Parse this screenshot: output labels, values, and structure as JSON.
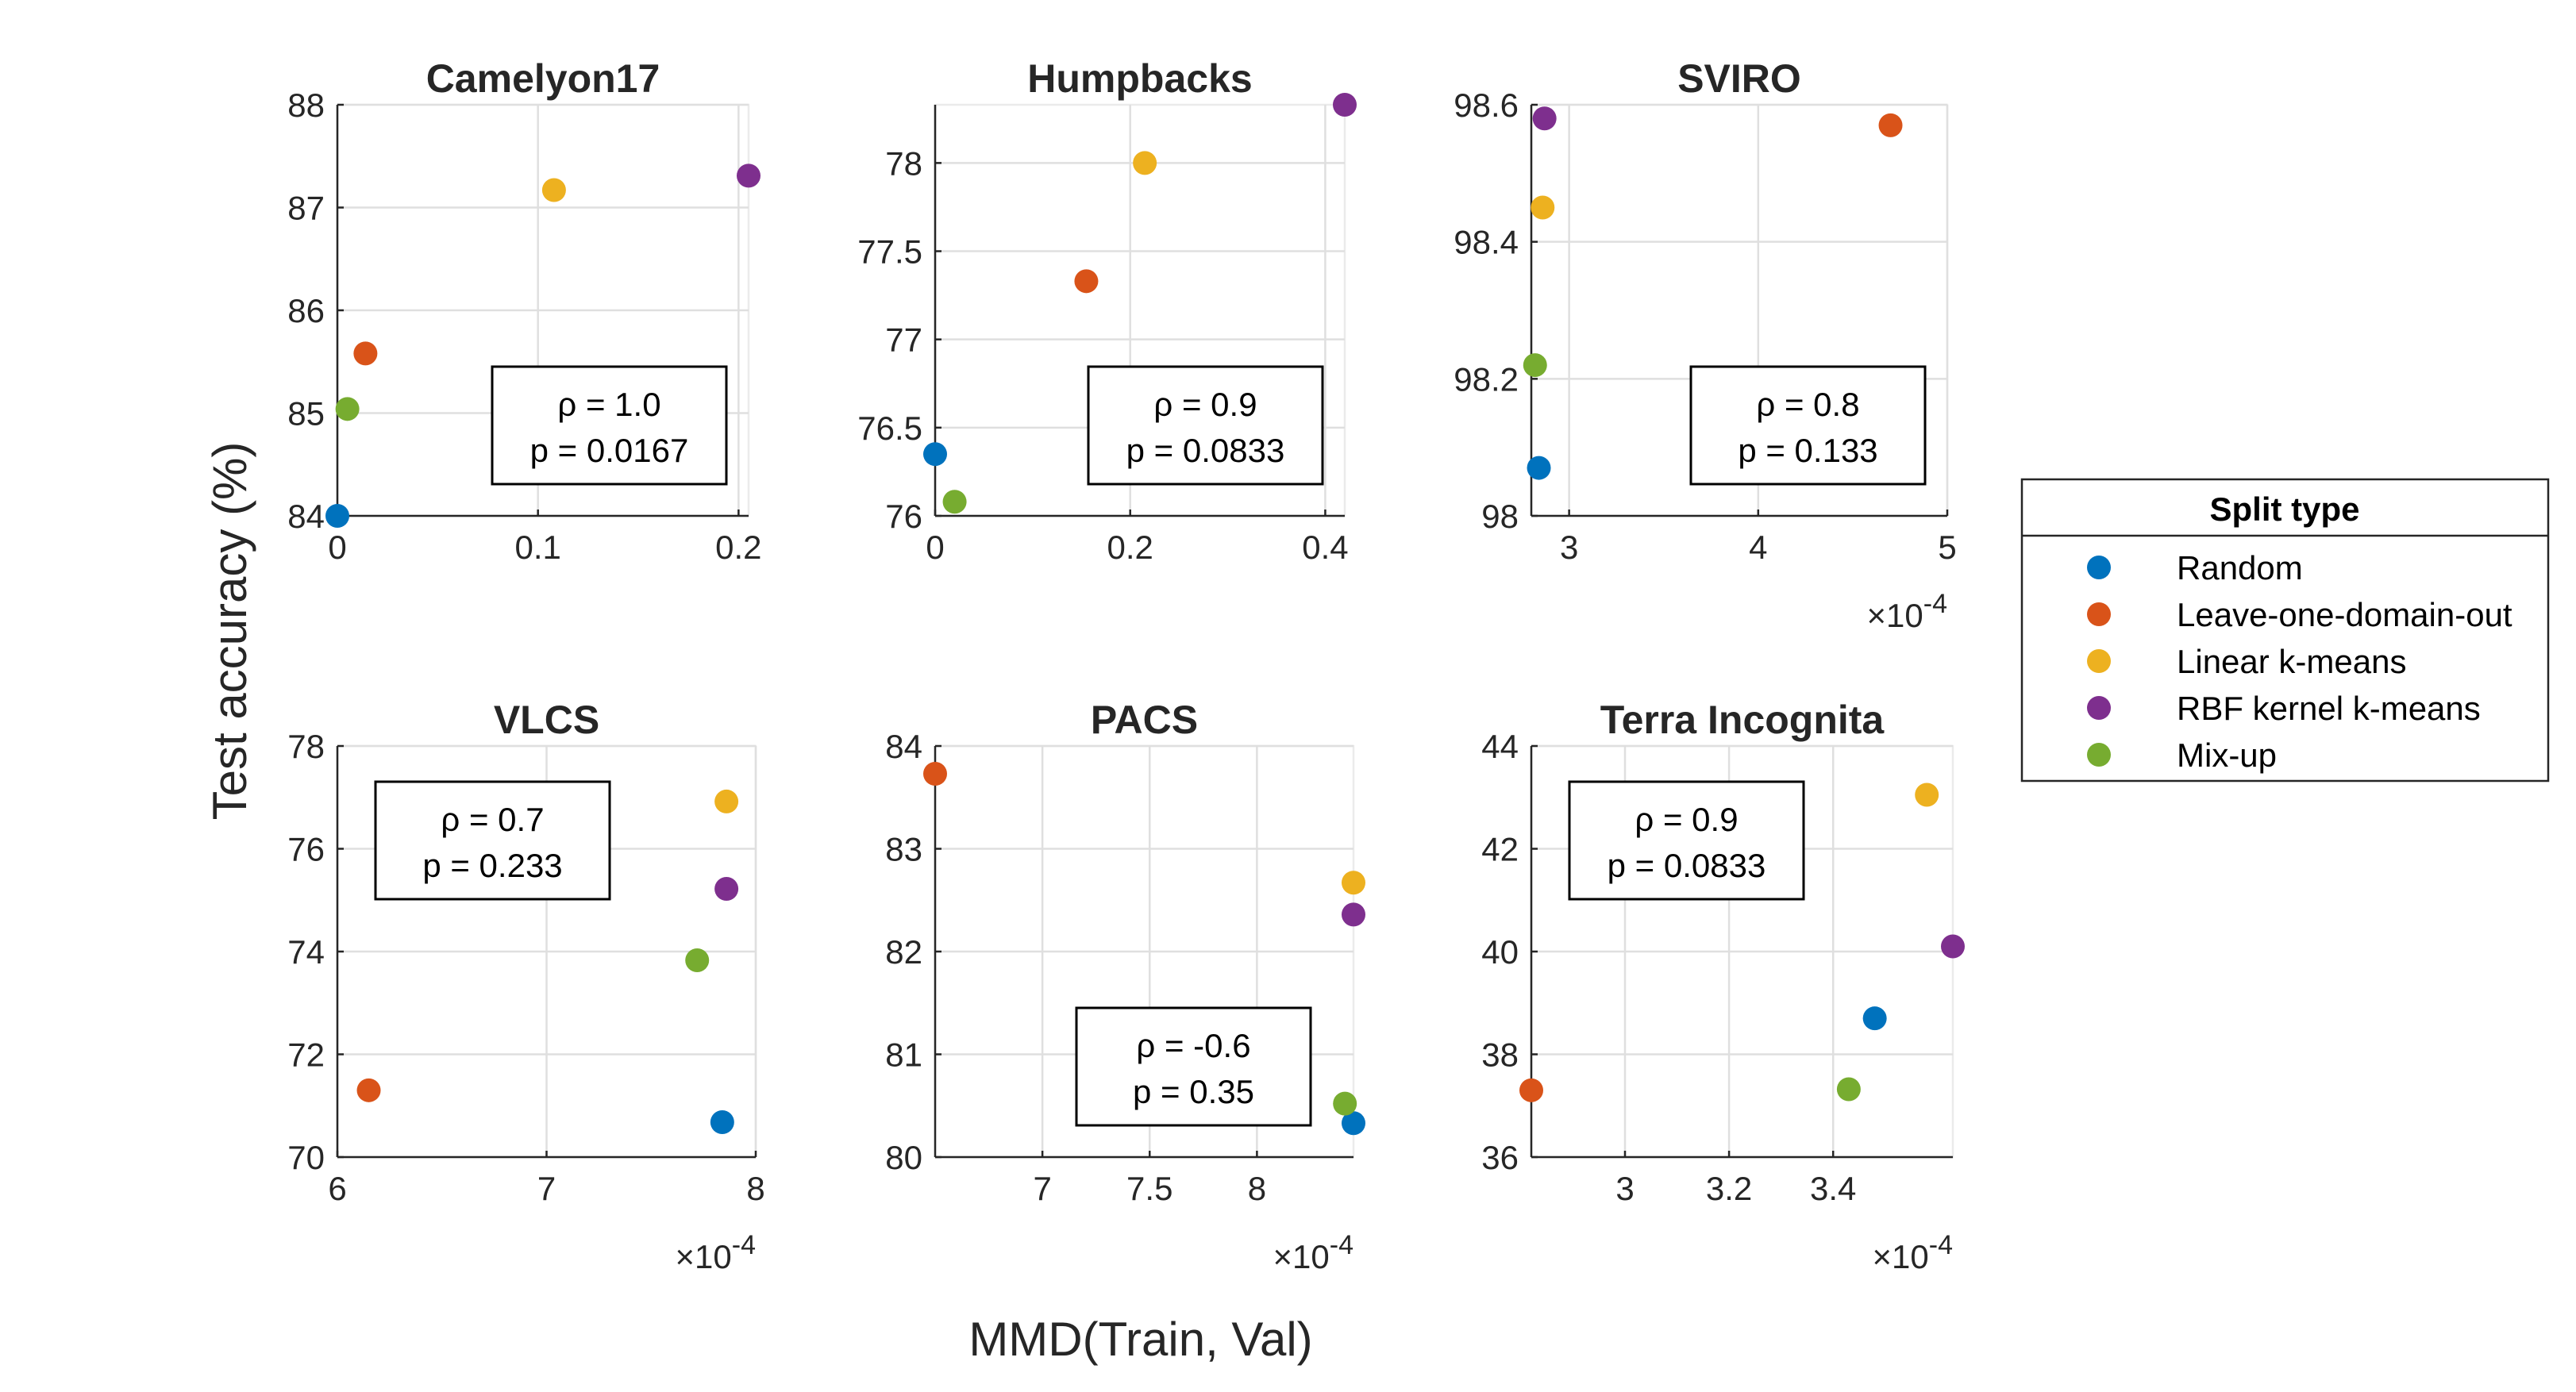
{
  "figure": {
    "ylabel": "Test accuracy (%)",
    "xlabel": "MMD(Train, Val)"
  },
  "legend": {
    "title": "Split type",
    "placement": "right",
    "items": [
      {
        "label": "Random",
        "color": "#0072BD"
      },
      {
        "label": "Leave-one-domain-out",
        "color": "#D95319"
      },
      {
        "label": "Linear k-means",
        "color": "#EDB120"
      },
      {
        "label": "RBF kernel k-means",
        "color": "#7E2F8E"
      },
      {
        "label": "Mix-up",
        "color": "#77AC30"
      }
    ]
  },
  "chart_data": [
    {
      "type": "scatter",
      "title": "Camelyon17",
      "xlim": [
        0,
        0.205
      ],
      "ylim": [
        84,
        88
      ],
      "xticks": [
        "0",
        "0.1",
        "0.2"
      ],
      "xtick_values": [
        0,
        0.1,
        0.2
      ],
      "yticks": [
        "84",
        "85",
        "86",
        "87",
        "88"
      ],
      "ytick_values": [
        84,
        85,
        86,
        87,
        88
      ],
      "exponent": "",
      "annotation": {
        "rho": "ρ = 1.0",
        "p": "p = 0.0167",
        "corner": "bottom-right"
      },
      "points": [
        {
          "series": "Random",
          "x": 0,
          "y": 84.0
        },
        {
          "series": "Leave-one-domain-out",
          "x": 0.014,
          "y": 85.58
        },
        {
          "series": "Linear k-means",
          "x": 0.108,
          "y": 87.17
        },
        {
          "series": "RBF kernel k-means",
          "x": 0.205,
          "y": 87.31
        },
        {
          "series": "Mix-up",
          "x": 0.005,
          "y": 85.04
        }
      ]
    },
    {
      "type": "scatter",
      "title": "Humpbacks",
      "xlim": [
        0,
        0.42
      ],
      "ylim": [
        76,
        78.33
      ],
      "xticks": [
        "0",
        "0.2",
        "0.4"
      ],
      "xtick_values": [
        0,
        0.2,
        0.4
      ],
      "yticks": [
        "76",
        "76.5",
        "77",
        "77.5",
        "78"
      ],
      "ytick_values": [
        76,
        76.5,
        77,
        77.5,
        78
      ],
      "exponent": "",
      "annotation": {
        "rho": "ρ = 0.9",
        "p": "p = 0.0833",
        "corner": "bottom-right"
      },
      "points": [
        {
          "series": "Random",
          "x": 0,
          "y": 76.35
        },
        {
          "series": "Leave-one-domain-out",
          "x": 0.155,
          "y": 77.33
        },
        {
          "series": "Linear k-means",
          "x": 0.215,
          "y": 78.0
        },
        {
          "series": "RBF kernel k-means",
          "x": 0.42,
          "y": 78.33
        },
        {
          "series": "Mix-up",
          "x": 0.02,
          "y": 76.08
        }
      ]
    },
    {
      "type": "scatter",
      "title": "SVIRO",
      "xlim": [
        2.8,
        5.0
      ],
      "ylim": [
        98.0,
        98.6
      ],
      "xticks": [
        "3",
        "4",
        "5"
      ],
      "xtick_values": [
        3,
        4,
        5
      ],
      "yticks": [
        "98",
        "98.2",
        "98.4",
        "98.6"
      ],
      "ytick_values": [
        98.0,
        98.2,
        98.4,
        98.6
      ],
      "exponent": "10",
      "exponent_power": "-4",
      "annotation": {
        "rho": "ρ = 0.8",
        "p": "p = 0.133",
        "corner": "bottom-right"
      },
      "points": [
        {
          "series": "Random",
          "x": 2.84,
          "y": 98.07
        },
        {
          "series": "Leave-one-domain-out",
          "x": 4.7,
          "y": 98.57
        },
        {
          "series": "Linear k-means",
          "x": 2.86,
          "y": 98.45
        },
        {
          "series": "RBF kernel k-means",
          "x": 2.87,
          "y": 98.58
        },
        {
          "series": "Mix-up",
          "x": 2.82,
          "y": 98.22
        }
      ]
    },
    {
      "type": "scatter",
      "title": "VLCS",
      "xlim": [
        6.0,
        8.0
      ],
      "ylim": [
        70,
        78
      ],
      "xticks": [
        "6",
        "7",
        "8"
      ],
      "xtick_values": [
        6,
        7,
        8
      ],
      "yticks": [
        "70",
        "72",
        "74",
        "76",
        "78"
      ],
      "ytick_values": [
        70,
        72,
        74,
        76,
        78
      ],
      "exponent": "10",
      "exponent_power": "-4",
      "annotation": {
        "rho": "ρ = 0.7",
        "p": "p = 0.233",
        "corner": "top-left"
      },
      "points": [
        {
          "series": "Random",
          "x": 7.84,
          "y": 70.68
        },
        {
          "series": "Leave-one-domain-out",
          "x": 6.15,
          "y": 71.3
        },
        {
          "series": "Linear k-means",
          "x": 7.86,
          "y": 76.92
        },
        {
          "series": "RBF kernel k-means",
          "x": 7.86,
          "y": 75.22
        },
        {
          "series": "Mix-up",
          "x": 7.72,
          "y": 73.83
        }
      ]
    },
    {
      "type": "scatter",
      "title": "PACS",
      "xlim": [
        6.5,
        8.45
      ],
      "ylim": [
        80,
        84
      ],
      "xticks": [
        "7",
        "7.5",
        "8"
      ],
      "xtick_values": [
        7,
        7.5,
        8
      ],
      "yticks": [
        "80",
        "81",
        "82",
        "83",
        "84"
      ],
      "ytick_values": [
        80,
        81,
        82,
        83,
        84
      ],
      "exponent": "10",
      "exponent_power": "-4",
      "annotation": {
        "rho": "ρ = -0.6",
        "p": "p = 0.35",
        "corner": "bottom-left"
      },
      "points": [
        {
          "series": "Random",
          "x": 8.45,
          "y": 80.33
        },
        {
          "series": "Leave-one-domain-out",
          "x": 6.5,
          "y": 83.73
        },
        {
          "series": "Linear k-means",
          "x": 8.45,
          "y": 82.67
        },
        {
          "series": "RBF kernel k-means",
          "x": 8.45,
          "y": 82.36
        },
        {
          "series": "Mix-up",
          "x": 8.41,
          "y": 80.52
        }
      ]
    },
    {
      "type": "scatter",
      "title": "Terra Incognita",
      "xlim": [
        2.82,
        3.63
      ],
      "ylim": [
        36,
        44
      ],
      "xticks": [
        "3",
        "3.2",
        "3.4"
      ],
      "xtick_values": [
        3.0,
        3.2,
        3.4
      ],
      "yticks": [
        "36",
        "38",
        "40",
        "42",
        "44"
      ],
      "ytick_values": [
        36,
        38,
        40,
        42,
        44
      ],
      "exponent": "10",
      "exponent_power": "-4",
      "annotation": {
        "rho": "ρ = 0.9",
        "p": "p = 0.0833",
        "corner": "top-left"
      },
      "points": [
        {
          "series": "Random",
          "x": 3.48,
          "y": 38.7
        },
        {
          "series": "Leave-one-domain-out",
          "x": 2.82,
          "y": 37.3
        },
        {
          "series": "Linear k-means",
          "x": 3.58,
          "y": 43.05
        },
        {
          "series": "RBF kernel k-means",
          "x": 3.63,
          "y": 40.1
        },
        {
          "series": "Mix-up",
          "x": 3.43,
          "y": 37.32
        }
      ]
    }
  ]
}
